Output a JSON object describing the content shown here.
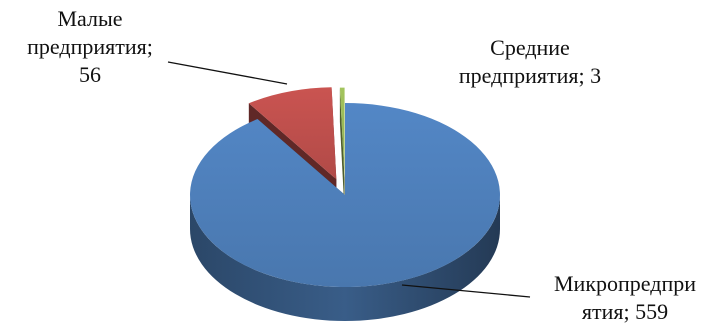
{
  "chart_data": {
    "type": "pie",
    "style": "3d-exploded",
    "slices": [
      {
        "category": "Микропредприятия",
        "value": 559,
        "color": "#4F81BD",
        "label_lines": [
          "Микропредпри",
          "ятия; 559"
        ]
      },
      {
        "category": "Малые предприятия",
        "value": 56,
        "color": "#C0504D",
        "label_lines": [
          "Малые",
          "предприятия;",
          "56"
        ]
      },
      {
        "category": "Средние предприятия",
        "value": 3,
        "color": "#9BBB59",
        "label_lines": [
          "Средние",
          "предприятия; 3"
        ]
      }
    ]
  }
}
